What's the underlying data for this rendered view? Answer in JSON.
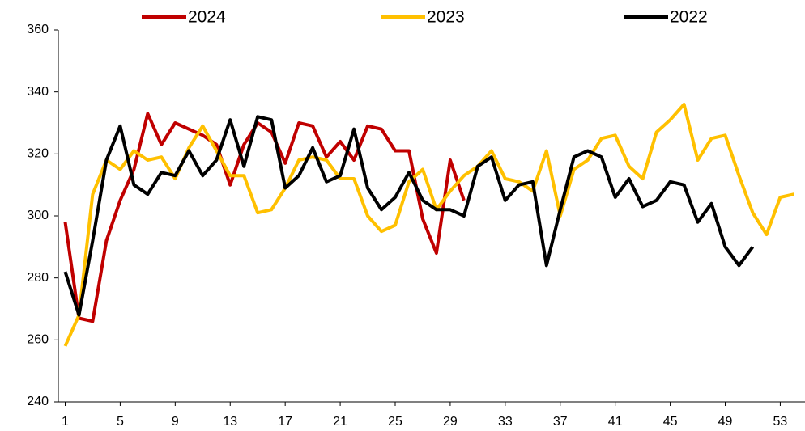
{
  "chart_data": {
    "type": "line",
    "x": [
      1,
      2,
      3,
      4,
      5,
      6,
      7,
      8,
      9,
      10,
      11,
      12,
      13,
      14,
      15,
      16,
      17,
      18,
      19,
      20,
      21,
      22,
      23,
      24,
      25,
      26,
      27,
      28,
      29,
      30,
      31,
      32,
      33,
      34,
      35,
      36,
      37,
      38,
      39,
      40,
      41,
      42,
      43,
      44,
      45,
      46,
      47,
      48,
      49,
      50,
      51,
      52,
      53,
      54
    ],
    "series": [
      {
        "name": "2024",
        "color": "#c00000",
        "values": [
          298,
          267,
          266,
          292,
          305,
          315,
          333,
          323,
          330,
          328,
          326,
          323,
          310,
          323,
          330,
          327,
          317,
          330,
          329,
          319,
          324,
          318,
          329,
          328,
          321,
          321,
          299,
          288,
          318,
          305,
          null,
          null,
          null,
          null,
          null,
          null,
          null,
          null,
          null,
          null,
          null,
          null,
          null,
          null,
          null,
          null,
          null,
          null,
          null,
          null,
          null,
          null,
          null,
          null
        ]
      },
      {
        "name": "2023",
        "color": "#ffc000",
        "values": [
          258,
          268,
          307,
          318,
          315,
          321,
          318,
          319,
          312,
          322,
          329,
          321,
          313,
          313,
          301,
          302,
          309,
          318,
          319,
          318,
          312,
          312,
          300,
          295,
          297,
          311,
          315,
          302,
          308,
          313,
          316,
          321,
          312,
          311,
          308,
          321,
          300,
          315,
          318,
          325,
          326,
          316,
          312,
          327,
          331,
          336,
          318,
          325,
          326,
          313,
          301,
          294,
          306,
          307
        ]
      },
      {
        "name": "2022",
        "color": "#000000",
        "values": [
          282,
          268,
          292,
          318,
          329,
          310,
          307,
          314,
          313,
          321,
          313,
          318,
          331,
          316,
          332,
          331,
          309,
          313,
          322,
          311,
          313,
          328,
          309,
          302,
          306,
          314,
          305,
          302,
          302,
          300,
          316,
          319,
          305,
          310,
          311,
          284,
          302,
          319,
          321,
          319,
          306,
          312,
          303,
          305,
          311,
          310,
          298,
          304,
          290,
          284,
          290,
          null,
          null,
          null
        ]
      }
    ],
    "xlim": [
      0.5,
      54.8
    ],
    "xticks": [
      1,
      5,
      9,
      13,
      17,
      21,
      25,
      29,
      33,
      37,
      41,
      45,
      49,
      53
    ],
    "ylim": [
      240,
      360
    ],
    "yticks": [
      240,
      260,
      280,
      300,
      320,
      340,
      360
    ],
    "legend": "top"
  }
}
